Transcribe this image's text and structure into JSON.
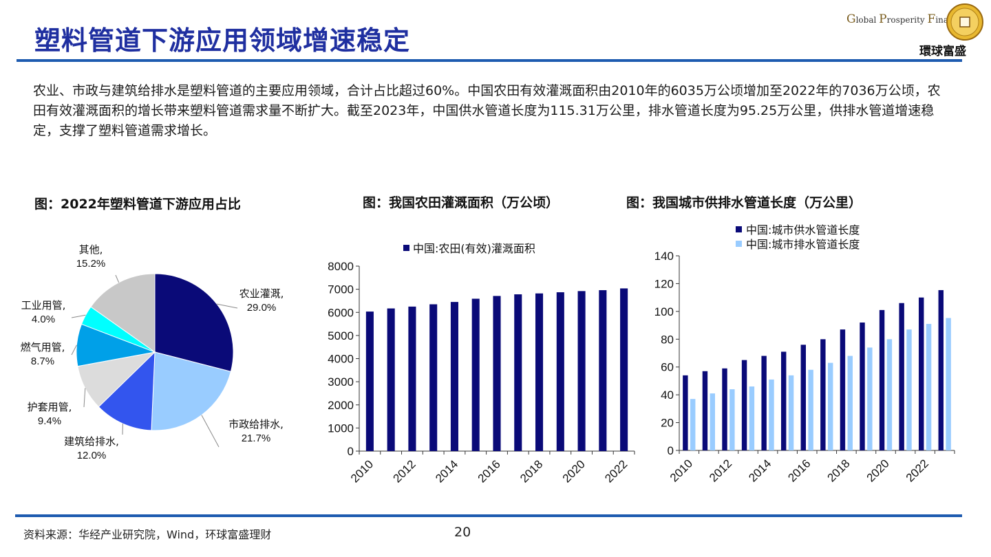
{
  "title": "塑料管道下游应用领域增速稳定",
  "logo": {
    "text_en": [
      "G",
      "lobal ",
      "P",
      "rosperity ",
      "F",
      "inancial"
    ],
    "text_cn": "環球富盛"
  },
  "body": "农业、市政与建筑给排水是塑料管道的主要应用领域，合计占比超过60%。中国农田有效灌溉面积由2010年的6035万公顷增加至2022年的7036万公顷，农田有效灌溉面积的增长带来塑料管道需求量不断扩大。截至2023年，中国供水管道长度为115.31万公里，排水管道长度为95.25万公里，供排水管道增速稳定，支撑了塑料管道需求增长。",
  "captions": {
    "pie": "图：2022年塑料管道下游应用占比",
    "farm": "图：我国农田灌溉面积（万公顷）",
    "pipe": "图：我国城市供排水管道长度（万公里）"
  },
  "footer": {
    "source": "资料来源：华经产业研究院，Wind，环球富盛理财",
    "page": "20"
  },
  "chart_data": [
    {
      "type": "pie",
      "title": "图：2022年塑料管道下游应用占比",
      "slices": [
        {
          "label": "农业灌溉,",
          "pct_label": "29.0%",
          "value": 29.0,
          "color": "#0a0a78"
        },
        {
          "label": "市政给排水,",
          "pct_label": "21.7%",
          "value": 21.7,
          "color": "#99ccff"
        },
        {
          "label": "建筑给排水,",
          "pct_label": "12.0%",
          "value": 12.0,
          "color": "#3355ee"
        },
        {
          "label": "护套用管,",
          "pct_label": "9.4%",
          "value": 9.4,
          "color": "#dcdcdc"
        },
        {
          "label": "燃气用管,",
          "pct_label": "8.7%",
          "value": 8.7,
          "color": "#00a0e8"
        },
        {
          "label": "工业用管,",
          "pct_label": "4.0%",
          "value": 4.0,
          "color": "#00ffff"
        },
        {
          "label": "其他,",
          "pct_label": "15.2%",
          "value": 15.2,
          "color": "#c8c8c8"
        }
      ]
    },
    {
      "type": "bar",
      "title": "图：我国农田灌溉面积（万公顷）",
      "x": [
        2010,
        2011,
        2012,
        2013,
        2014,
        2015,
        2016,
        2017,
        2018,
        2019,
        2020,
        2021,
        2022
      ],
      "xtick_labels": [
        "2010",
        "2012",
        "2014",
        "2016",
        "2018",
        "2020",
        "2022"
      ],
      "series": [
        {
          "name": "中国:农田(有效)灌溉面积",
          "color": "#0a0a78",
          "values": [
            6035,
            6170,
            6250,
            6350,
            6450,
            6590,
            6710,
            6780,
            6820,
            6870,
            6920,
            6960,
            7036
          ]
        }
      ],
      "ylim": [
        0,
        8000
      ],
      "yticks": [
        0,
        1000,
        2000,
        3000,
        4000,
        5000,
        6000,
        7000,
        8000
      ],
      "legend": "top"
    },
    {
      "type": "bar",
      "title": "图：我国城市供排水管道长度（万公里）",
      "x": [
        2010,
        2011,
        2012,
        2013,
        2014,
        2015,
        2016,
        2017,
        2018,
        2019,
        2020,
        2021,
        2022,
        2023
      ],
      "xtick_labels": [
        "2010",
        "2012",
        "2014",
        "2016",
        "2018",
        "2020",
        "2022"
      ],
      "series": [
        {
          "name": "中国:城市供水管道长度",
          "color": "#0a0a78",
          "values": [
            54,
            57,
            59,
            65,
            68,
            71,
            76,
            80,
            87,
            92,
            101,
            106,
            110,
            115.31
          ]
        },
        {
          "name": "中国:城市排水管道长度",
          "color": "#99ccff",
          "values": [
            37,
            41,
            44,
            46,
            51,
            54,
            58,
            63,
            68,
            74,
            80,
            87,
            91,
            95.25
          ]
        }
      ],
      "ylim": [
        0,
        140
      ],
      "yticks": [
        0,
        20,
        40,
        60,
        80,
        100,
        120,
        140
      ],
      "legend": "top"
    }
  ]
}
